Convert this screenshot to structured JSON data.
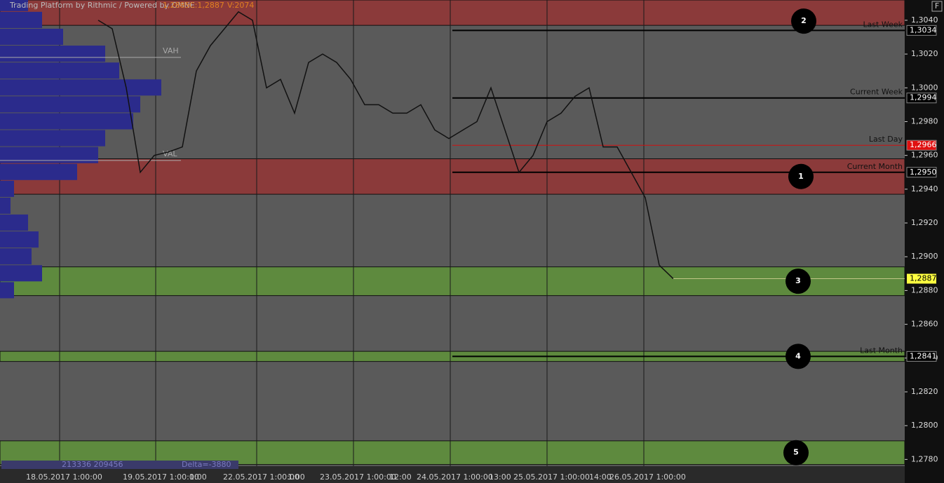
{
  "chart_data": {
    "type": "line",
    "header": [
      "Trading Platform by Rithmic / Powered by OMNE",
      "1,2885",
      "C:1,2887",
      "V:2074"
    ],
    "ylim": [
      1.2776,
      1.3052
    ],
    "yticks": [
      {
        "value": 1.278,
        "label": "1,2780"
      },
      {
        "value": 1.28,
        "label": "1,2800"
      },
      {
        "value": 1.282,
        "label": "1,2820"
      },
      {
        "value": 1.284,
        "label": "1,2840"
      },
      {
        "value": 1.286,
        "label": "1,2860"
      },
      {
        "value": 1.288,
        "label": "1,2880"
      },
      {
        "value": 1.29,
        "label": "1,2900"
      },
      {
        "value": 1.292,
        "label": "1,2920"
      },
      {
        "value": 1.294,
        "label": "1,2940"
      },
      {
        "value": 1.296,
        "label": "1,2960"
      },
      {
        "value": 1.298,
        "label": "1,2980"
      },
      {
        "value": 1.3,
        "label": "1,3000"
      },
      {
        "value": 1.302,
        "label": "1,3020"
      },
      {
        "value": 1.304,
        "label": "1,3040"
      }
    ],
    "x_labels": [
      "18.05.2017 1:00:00",
      "19.05.2017 1:00:00",
      "1:00",
      "22.05.2017 1:00:00",
      "1:00",
      "23.05.2017 1:00:00",
      "12:00",
      "24.05.2017 1:00:00",
      "13:00",
      "25.05.2017 1:00:00",
      "14:00",
      "26.05.2017 1:00:00"
    ],
    "zones": [
      {
        "label": "2",
        "range": [
          1.3037,
          1.3052
        ],
        "color": "#8b3a3a"
      },
      {
        "label": "1",
        "range": [
          1.2937,
          1.2958
        ],
        "color": "#8b3a3a"
      },
      {
        "label": "3",
        "range": [
          1.2877,
          1.2894
        ],
        "color": "#5e8a3e"
      },
      {
        "label": "4",
        "range": [
          1.2838,
          1.2844
        ],
        "color": "#5e8a3e"
      },
      {
        "label": "5",
        "range": [
          1.2777,
          1.2791
        ],
        "color": "#5e8a3e"
      }
    ],
    "levels": [
      {
        "name": "Last Week",
        "value": 1.3034,
        "value_label": "1,3034",
        "color": "#000000",
        "box": "#000000"
      },
      {
        "name": "Current Week",
        "value": 1.2994,
        "value_label": "1,2994",
        "color": "#000000",
        "box": "#000000"
      },
      {
        "name": "Last Day",
        "value": 1.2966,
        "value_label": "1,2966",
        "color": "#d01010",
        "box": "#e01010"
      },
      {
        "name": "Current Month",
        "value": 1.295,
        "value_label": "1,2950",
        "color": "#000000",
        "box": "#000000"
      },
      {
        "name": "Last Month",
        "value": 1.2841,
        "value_label": "1,2841",
        "color": "#000000",
        "box": "#000000"
      }
    ],
    "last_price": {
      "value": 1.2887,
      "value_label": "1,2887",
      "color": "#ffff40"
    },
    "value_area": [
      {
        "name": "VAH",
        "value": 1.3018
      },
      {
        "name": "VAL",
        "value": 1.2957
      }
    ],
    "series": [
      {
        "name": "Price",
        "color": "#111111",
        "values": [
          1.304,
          1.3035,
          1.3,
          1.295,
          1.296,
          1.2962,
          1.2965,
          1.301,
          1.3025,
          1.3035,
          1.3045,
          1.304,
          1.3,
          1.3005,
          1.2985,
          1.3015,
          1.302,
          1.3015,
          1.3005,
          1.299,
          1.299,
          1.2985,
          1.2985,
          1.299,
          1.2975,
          1.297,
          1.2975,
          1.298,
          1.3,
          1.2975,
          1.295,
          1.296,
          1.298,
          1.2985,
          1.2995,
          1.3,
          1.2965,
          1.2965,
          1.295,
          1.2935,
          1.2895,
          1.2887
        ]
      }
    ],
    "volume_profile": {
      "color": "#2b2b8c",
      "levels": [
        1.305,
        1.304,
        1.303,
        1.302,
        1.301,
        1.3,
        1.299,
        1.298,
        1.297,
        1.296,
        1.295,
        1.294,
        1.293,
        1.292,
        1.291,
        1.29,
        1.289,
        1.288
      ],
      "values": [
        40,
        60,
        90,
        150,
        170,
        230,
        200,
        190,
        150,
        140,
        110,
        20,
        15,
        40,
        55,
        45,
        60,
        20
      ]
    },
    "footer": [
      "213336 209456",
      "Delta=-3880"
    ]
  }
}
